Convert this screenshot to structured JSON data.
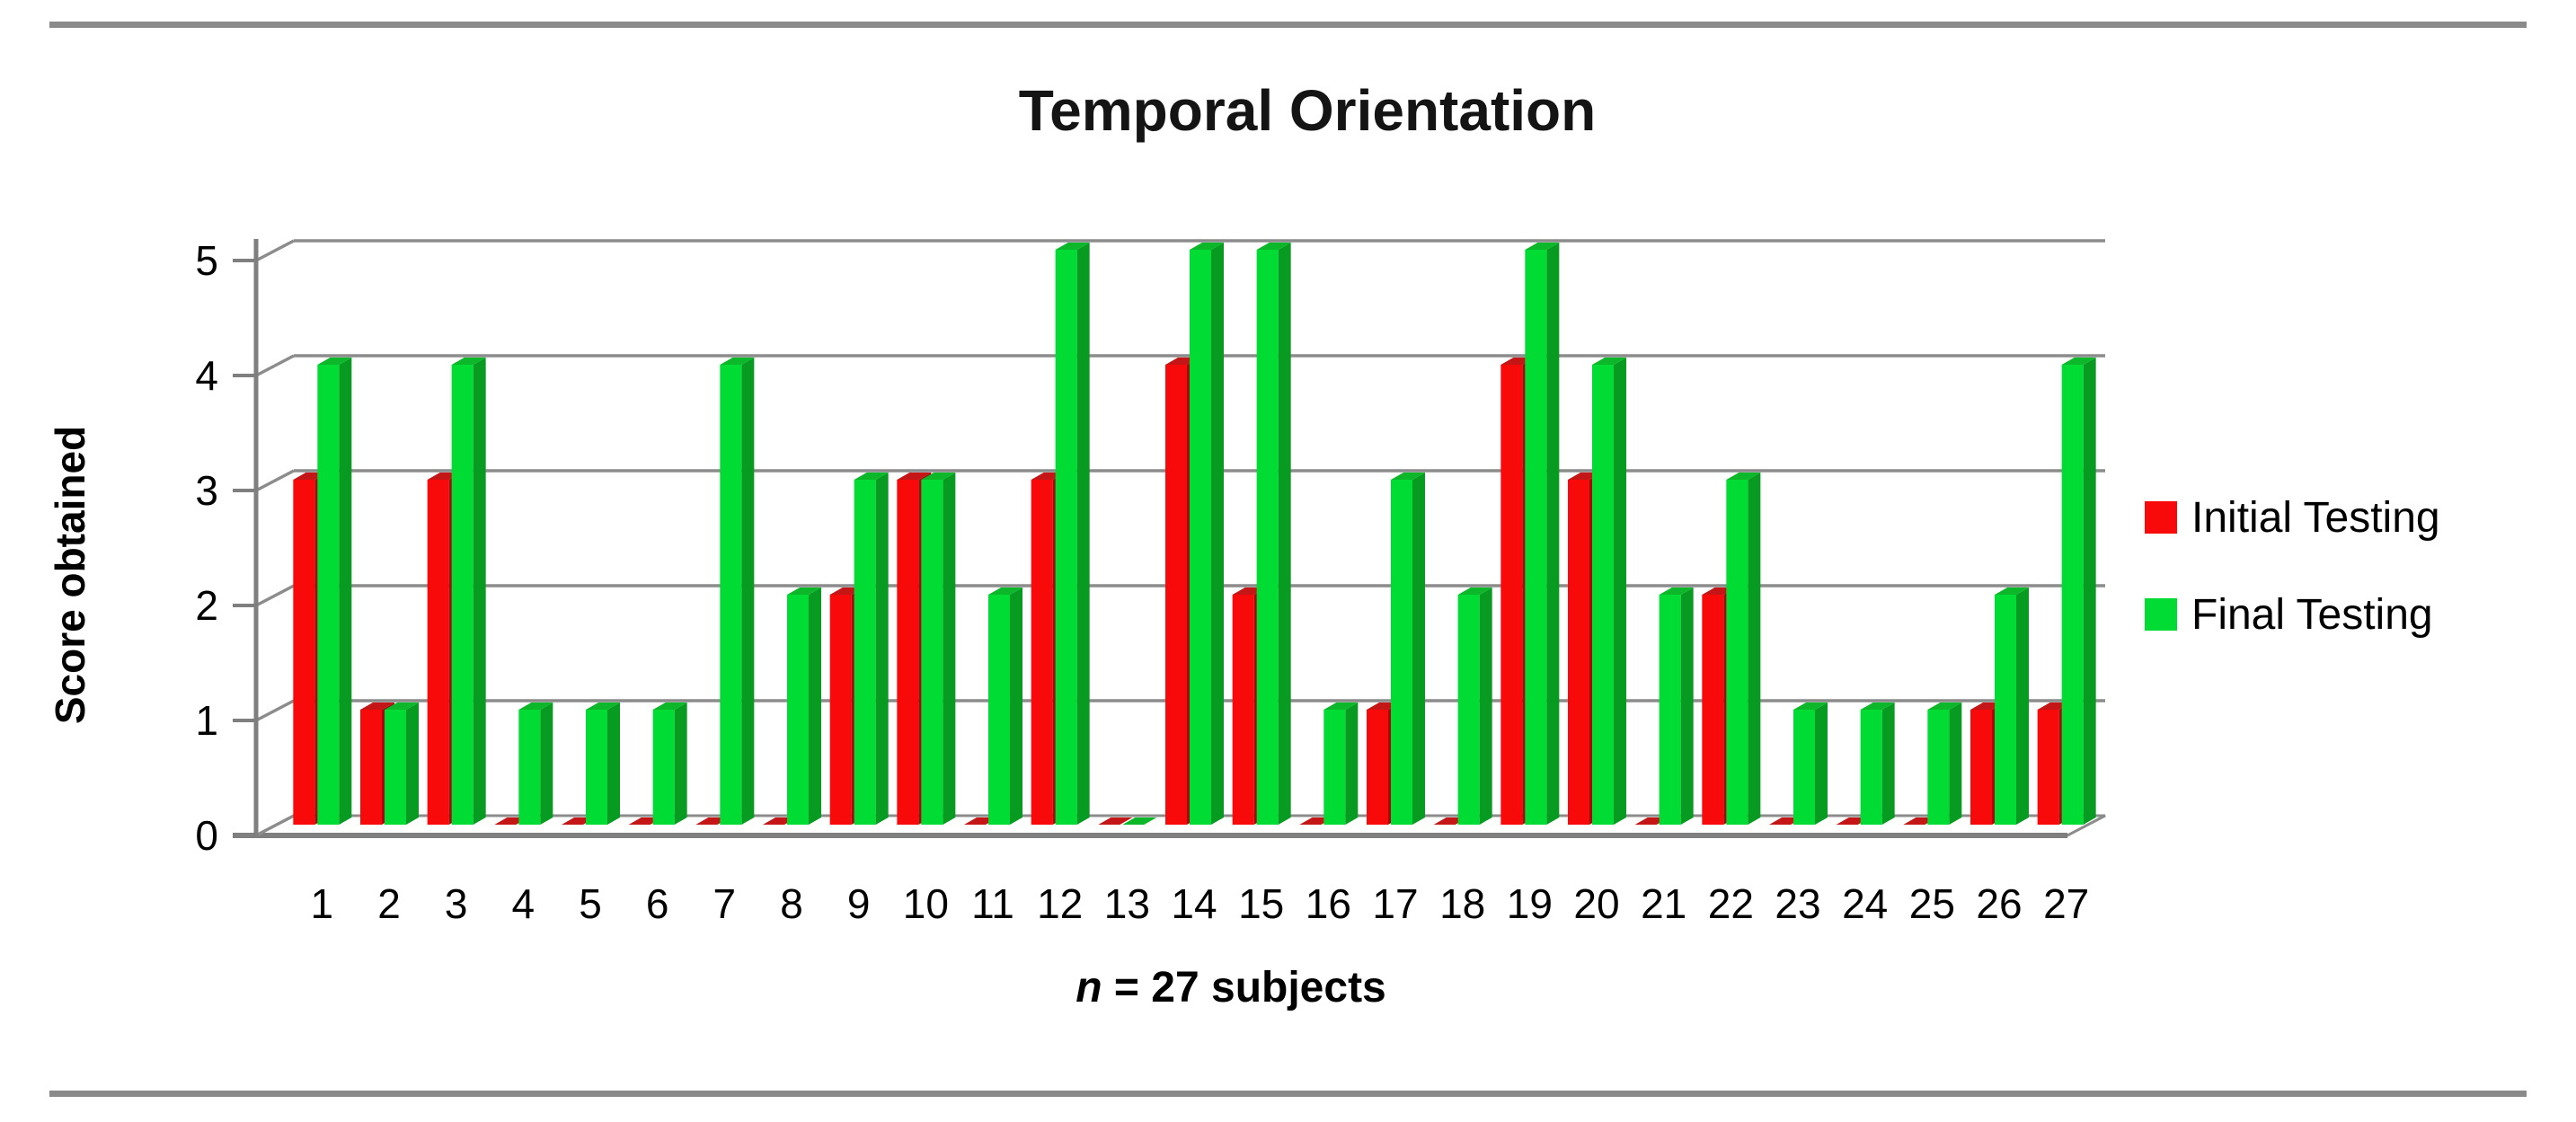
{
  "chart_data": {
    "type": "bar",
    "style": "3d-clustered-column",
    "title": "Temporal Orientation",
    "ylabel": "Score obtained",
    "xlabel": "n = 27 subjects",
    "xlabel_italic_part": "n",
    "xlabel_rest": " = 27 subjects",
    "categories": [
      "1",
      "2",
      "3",
      "4",
      "5",
      "6",
      "7",
      "8",
      "9",
      "10",
      "11",
      "12",
      "13",
      "14",
      "15",
      "16",
      "17",
      "18",
      "19",
      "20",
      "21",
      "22",
      "23",
      "24",
      "25",
      "26",
      "27"
    ],
    "series": [
      {
        "name": "Initial Testing",
        "color": "#f90a0a",
        "values": [
          3,
          1,
          3,
          0,
          0,
          0,
          0,
          0,
          2,
          3,
          0,
          3,
          0,
          4,
          2,
          0,
          1,
          0,
          4,
          3,
          0,
          2,
          0,
          0,
          0,
          1,
          1
        ]
      },
      {
        "name": "Final Testing",
        "color": "#00dc34",
        "values": [
          4,
          1,
          4,
          1,
          1,
          1,
          4,
          2,
          3,
          3,
          2,
          5,
          0,
          5,
          5,
          1,
          3,
          2,
          5,
          4,
          2,
          3,
          1,
          1,
          1,
          2,
          4
        ]
      }
    ],
    "y_ticks": [
      0,
      1,
      2,
      3,
      4,
      5
    ],
    "ylim": [
      0,
      5
    ],
    "grid": true,
    "legend_position": "right"
  },
  "colors": {
    "initial_front": "#f90a0a",
    "initial_side": "#a00b0b",
    "initial_top": "#c41616",
    "final_front": "#00dc34",
    "final_side": "#089b22",
    "final_top": "#0cb82a",
    "gridline": "#8c8c8c",
    "axis": "#7f7f7f",
    "rule": "#8a8a8a",
    "text": "#000000"
  }
}
